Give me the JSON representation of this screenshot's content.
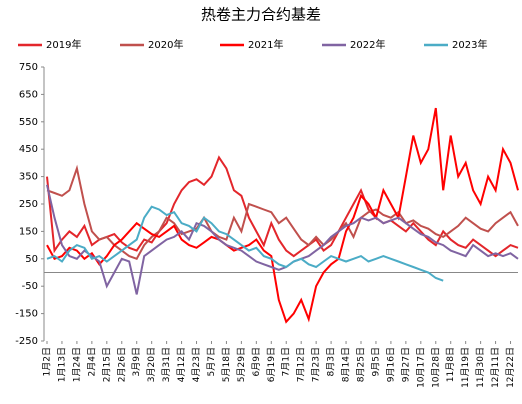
{
  "chart_data": {
    "type": "line",
    "title": "热卷主力合约基差",
    "categories": [
      "1月2日",
      null,
      "1月13日",
      null,
      "1月24日",
      null,
      "2月4日",
      null,
      "2月15日",
      null,
      "2月26日",
      null,
      "3月9日",
      null,
      "3月20日",
      null,
      "3月31日",
      null,
      "4月12日",
      null,
      "4月23日",
      null,
      "5月7日",
      null,
      "5月18日",
      null,
      "5月29日",
      null,
      "6月9日",
      null,
      "6月19日",
      null,
      "7月1日",
      null,
      "7月12日",
      null,
      "7月23日",
      null,
      "8月3日",
      null,
      "8月14日",
      null,
      "8月25日",
      null,
      "9月5日",
      null,
      "9月16日",
      null,
      "9月27日",
      null,
      "10月17日",
      null,
      "10月28日",
      null,
      "11月8日",
      null,
      "11月19日",
      null,
      "11月30日",
      null,
      "12月11日",
      null,
      "12月22日",
      null
    ],
    "series": [
      {
        "name": "2019年",
        "color": "#e3262b",
        "values": [
          350,
          80,
          120,
          150,
          130,
          170,
          100,
          120,
          130,
          140,
          110,
          90,
          80,
          120,
          110,
          150,
          180,
          250,
          300,
          330,
          340,
          320,
          350,
          420,
          380,
          300,
          280,
          200,
          150,
          100,
          180,
          120,
          80,
          60,
          80,
          100,
          120,
          80,
          100,
          150,
          200,
          250,
          300,
          230,
          200,
          180,
          190,
          170,
          150,
          180,
          150,
          120,
          100,
          150,
          120,
          100,
          90,
          120,
          100,
          80,
          60,
          80,
          100,
          90
        ]
      },
      {
        "name": "2020年",
        "color": "#c0504d",
        "values": [
          300,
          290,
          280,
          300,
          380,
          250,
          150,
          120,
          130,
          100,
          80,
          60,
          50,
          100,
          130,
          150,
          200,
          180,
          140,
          150,
          160,
          200,
          150,
          130,
          120,
          200,
          150,
          250,
          240,
          230,
          220,
          180,
          200,
          160,
          120,
          100,
          130,
          100,
          120,
          150,
          180,
          130,
          200,
          220,
          230,
          210,
          200,
          220,
          180,
          190,
          170,
          160,
          140,
          130,
          150,
          170,
          200,
          180,
          160,
          150,
          180,
          200,
          220,
          170
        ]
      },
      {
        "name": "2021年",
        "color": "#ff0000",
        "values": [
          100,
          50,
          60,
          90,
          80,
          50,
          70,
          30,
          60,
          100,
          120,
          150,
          180,
          160,
          140,
          130,
          150,
          170,
          120,
          100,
          90,
          110,
          130,
          120,
          100,
          80,
          90,
          100,
          120,
          80,
          60,
          -100,
          -180,
          -150,
          -100,
          -170,
          -50,
          0,
          30,
          50,
          150,
          200,
          280,
          250,
          200,
          300,
          250,
          200,
          350,
          500,
          400,
          450,
          600,
          300,
          500,
          350,
          400,
          300,
          250,
          350,
          300,
          450,
          400,
          300
        ]
      },
      {
        "name": "2022年",
        "color": "#8064a2",
        "values": [
          320,
          200,
          100,
          60,
          50,
          80,
          60,
          40,
          -50,
          0,
          50,
          40,
          -80,
          60,
          80,
          100,
          120,
          130,
          150,
          120,
          180,
          170,
          150,
          120,
          100,
          90,
          80,
          60,
          40,
          30,
          20,
          10,
          20,
          40,
          50,
          60,
          80,
          100,
          130,
          150,
          170,
          180,
          200,
          190,
          200,
          180,
          190,
          200,
          180,
          160,
          140,
          130,
          110,
          100,
          80,
          70,
          60,
          100,
          80,
          60,
          70,
          60,
          70,
          50
        ]
      },
      {
        "name": "2023年",
        "color": "#4bacc6",
        "values": [
          50,
          60,
          40,
          80,
          100,
          90,
          50,
          60,
          40,
          60,
          80,
          100,
          120,
          200,
          240,
          230,
          210,
          220,
          180,
          170,
          150,
          200,
          180,
          150,
          140,
          120,
          100,
          80,
          90,
          60,
          50,
          30,
          20,
          40,
          50,
          30,
          20,
          40,
          60,
          50,
          40,
          50,
          60,
          40,
          50,
          60,
          50,
          40,
          30,
          20,
          10,
          0,
          -20,
          -30,
          null,
          null,
          null,
          null,
          null,
          null,
          null,
          null,
          null,
          null
        ]
      }
    ],
    "ylim": [
      -250,
      750
    ],
    "yticks": [
      -250,
      -150,
      -50,
      50,
      150,
      250,
      350,
      450,
      550,
      650,
      750
    ],
    "grid": false
  }
}
